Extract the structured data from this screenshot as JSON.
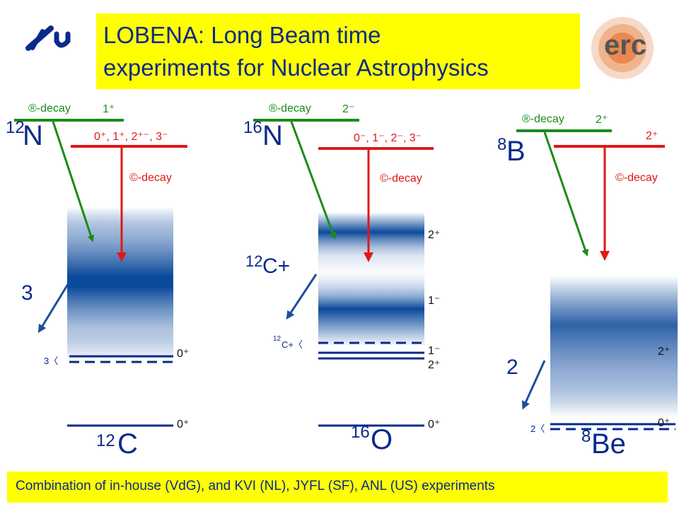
{
  "title": {
    "line1": "LOBENA: Long Beam time",
    "line2": "experiments for Nuclear Astrophysics"
  },
  "footer": "Combination of in-house (VdG), and KVI (NL), JYFL (SF), ANL (US) experiments",
  "logos": {
    "right": "erc"
  },
  "colors": {
    "title_bg": "#ffff00",
    "text": "#0a2a8c",
    "beta": "#1a8c1a",
    "ec": "#e01818",
    "levels": "#0a2a8c"
  },
  "panels": {
    "n12": {
      "parent_mass": "12",
      "parent_el": "N",
      "beta_label": "®-decay",
      "beta_jp": "1⁺",
      "ec_jp": "0⁺, 1⁺, 2⁺⁻, 3⁻",
      "ec_label": "©-decay",
      "breakup": "3",
      "threshold": "3〈",
      "daughter_mass": "12",
      "daughter_el": "C",
      "level_upper": "0⁺",
      "level_ground": "0⁺"
    },
    "n16": {
      "parent_mass": "16",
      "parent_el": "N",
      "beta_label": "®-decay",
      "beta_jp": "2⁻",
      "ec_jp": "0⁻, 1⁻, 2⁻, 3⁻",
      "ec_label": "©-decay",
      "breakup_mass": "12",
      "breakup": "C+",
      "threshold_mass": "12",
      "threshold": "C+〈",
      "daughter_mass": "16",
      "daughter_el": "O",
      "level_a": "2⁺",
      "level_b": "1⁻",
      "level_c": "1⁻",
      "level_d": "2⁺",
      "level_ground": "0⁺"
    },
    "b8": {
      "parent_mass": "8",
      "parent_el": "B",
      "beta_label": "®-decay",
      "beta_jp": "2⁺",
      "ec_jp": "2⁺",
      "ec_label": "©-decay",
      "breakup": "2",
      "threshold": "2〈",
      "daughter_mass": "8",
      "daughter_el": "Be",
      "level_upper": "2⁺",
      "level_ground": "0⁺"
    }
  }
}
